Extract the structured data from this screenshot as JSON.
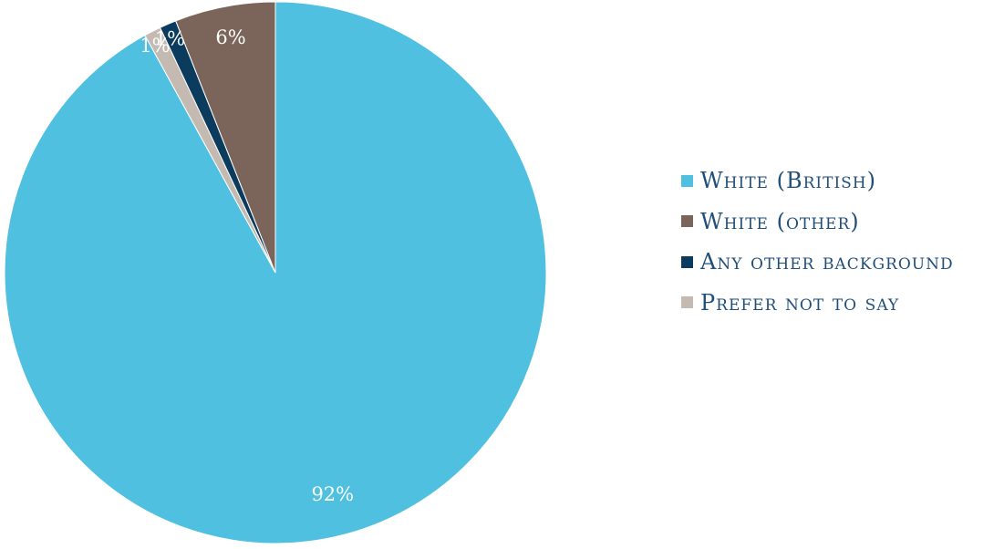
{
  "chart_data": {
    "type": "pie",
    "title": "",
    "legend_position": "right",
    "slices": [
      {
        "label": "White (British)",
        "value": 92,
        "display": "92%",
        "color": "#4fc0e0"
      },
      {
        "label": "Prefer not to say",
        "value": 1,
        "display": "1%",
        "color": "#c4bab2"
      },
      {
        "label": "Any other background",
        "value": 1,
        "display": "1%",
        "color": "#0b3c5d"
      },
      {
        "label": "White (other)",
        "value": 6,
        "display": "6%",
        "color": "#7b655a"
      }
    ],
    "legend": [
      {
        "label": "White (British)",
        "color": "#4fc0e0"
      },
      {
        "label": "White (other)",
        "color": "#7b655a"
      },
      {
        "label": "Any other background",
        "color": "#0b3c5d"
      },
      {
        "label": "Prefer not to say",
        "color": "#c4bab2"
      }
    ]
  }
}
